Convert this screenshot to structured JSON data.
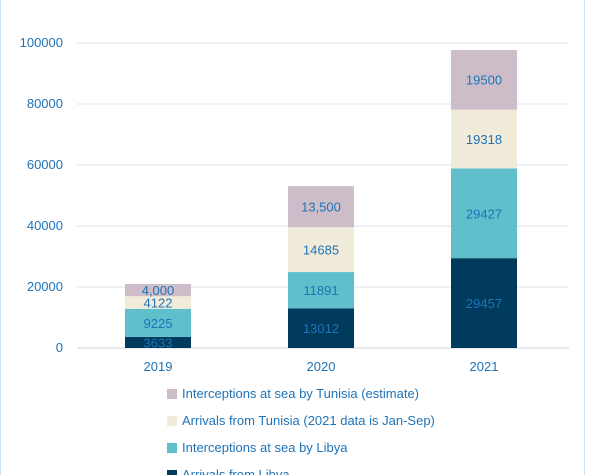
{
  "chart_data": {
    "type": "bar",
    "stacked": true,
    "categories": [
      "2019",
      "2020",
      "2021"
    ],
    "ylim": [
      0,
      100000
    ],
    "yticks": [
      "0",
      "20000",
      "40000",
      "60000",
      "80000",
      "100000"
    ],
    "grid": true,
    "legend_position": "bottom",
    "series": [
      {
        "name": "Arrivals from Libya",
        "values": [
          3633,
          13012,
          29457
        ],
        "labels": [
          "3633",
          "13012",
          "29457"
        ],
        "color": "#003a5c"
      },
      {
        "name": "Interceptions at sea by Libya",
        "values": [
          9225,
          11891,
          29427
        ],
        "labels": [
          "9225",
          "11891",
          "29427"
        ],
        "color": "#5fc0cc"
      },
      {
        "name": "Arrivals from Tunisia (2021 data is Jan-Sep)",
        "values": [
          4122,
          14685,
          19318
        ],
        "labels": [
          "4122",
          "14685",
          "19318"
        ],
        "color": "#f1ebda"
      },
      {
        "name": "Interceptions at sea by Tunisia (estimate)",
        "values": [
          4000,
          13500,
          19500
        ],
        "labels": [
          "4,000",
          "13,500",
          "19500"
        ],
        "color": "#cdbdc9"
      }
    ]
  }
}
